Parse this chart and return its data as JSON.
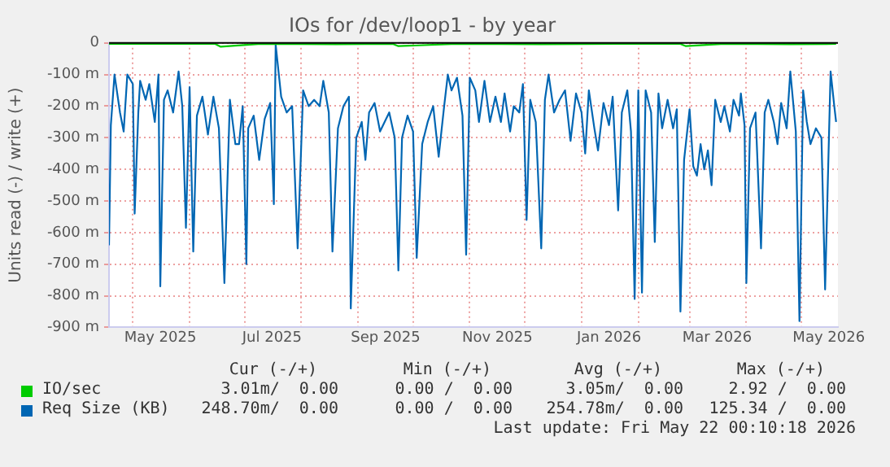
{
  "chart_data": {
    "type": "line",
    "title": "IOs for /dev/loop1 - by year",
    "ylabel": "Units read (-) / write (+)",
    "xlim": [
      "2025-04-18",
      "2026-05-21"
    ],
    "xticks": [
      {
        "value": "2025-05-01",
        "label": null
      },
      {
        "value": "2025-05-16",
        "label": "May 2025"
      },
      {
        "value": "2025-06-01",
        "label": null
      },
      {
        "value": "2025-07-01",
        "label": null
      },
      {
        "value": "2025-07-16",
        "label": "Jul 2025"
      },
      {
        "value": "2025-08-01",
        "label": null
      },
      {
        "value": "2025-09-01",
        "label": null
      },
      {
        "value": "2025-09-16",
        "label": "Sep 2025"
      },
      {
        "value": "2025-10-01",
        "label": null
      },
      {
        "value": "2025-11-01",
        "label": null
      },
      {
        "value": "2025-11-16",
        "label": "Nov 2025"
      },
      {
        "value": "2025-12-01",
        "label": null
      },
      {
        "value": "2026-01-01",
        "label": null
      },
      {
        "value": "2026-01-16",
        "label": "Jan 2026"
      },
      {
        "value": "2026-02-01",
        "label": null
      },
      {
        "value": "2026-03-01",
        "label": null
      },
      {
        "value": "2026-03-16",
        "label": "Mar 2026"
      },
      {
        "value": "2026-04-01",
        "label": null
      },
      {
        "value": "2026-05-01",
        "label": null
      },
      {
        "value": "2026-05-16",
        "label": "May 2026"
      }
    ],
    "ylim": [
      -900,
      0
    ],
    "yticks": [
      0,
      {
        "value": -100,
        "label": "-100 m"
      },
      {
        "value": -200,
        "label": "-200 m"
      },
      {
        "value": -300,
        "label": "-300 m"
      },
      {
        "value": -400,
        "label": "-400 m"
      },
      {
        "value": -500,
        "label": "-500 m"
      },
      {
        "value": -600,
        "label": "-600 m"
      },
      {
        "value": -700,
        "label": "-700 m"
      },
      {
        "value": -800,
        "label": "-800 m"
      },
      {
        "value": -900,
        "label": "-900 m"
      }
    ],
    "grid": true,
    "legend": "bottom",
    "marker": "none",
    "line_style": "solid",
    "series": [
      {
        "name": "IO/sec",
        "color": "#00cc00",
        "x": [
          "2025-04-18",
          "2025-05-20",
          "2025-06-15",
          "2025-06-18",
          "2025-07-10",
          "2025-08-20",
          "2025-09-20",
          "2025-09-23",
          "2025-10-25",
          "2025-12-10",
          "2026-01-20",
          "2026-02-24",
          "2026-02-27",
          "2026-03-20",
          "2026-04-25",
          "2026-05-20"
        ],
        "values": [
          -3,
          -3,
          -3,
          -12,
          -3,
          -4,
          -3,
          -10,
          -3,
          -4,
          -3,
          -3,
          -10,
          -3,
          -4,
          -3
        ]
      },
      {
        "name": "Req Size (KB)",
        "color": "#0066b3",
        "x": [
          "2025-04-18",
          "2025-04-19",
          "2025-04-21",
          "2025-04-24",
          "2025-04-26",
          "2025-04-28",
          "2025-05-01",
          "2025-05-02",
          "2025-05-04",
          "2025-05-05",
          "2025-05-08",
          "2025-05-10",
          "2025-05-13",
          "2025-05-15",
          "2025-05-16",
          "2025-05-18",
          "2025-05-20",
          "2025-05-23",
          "2025-05-26",
          "2025-05-28",
          "2025-05-30",
          "2025-06-01",
          "2025-06-03",
          "2025-06-05",
          "2025-06-08",
          "2025-06-11",
          "2025-06-14",
          "2025-06-17",
          "2025-06-20",
          "2025-06-23",
          "2025-06-26",
          "2025-06-28",
          "2025-06-30",
          "2025-07-02",
          "2025-07-03",
          "2025-07-06",
          "2025-07-09",
          "2025-07-12",
          "2025-07-15",
          "2025-07-17",
          "2025-07-18",
          "2025-07-21",
          "2025-07-24",
          "2025-07-27",
          "2025-07-30",
          "2025-08-02",
          "2025-08-05",
          "2025-08-08",
          "2025-08-11",
          "2025-08-13",
          "2025-08-16",
          "2025-08-18",
          "2025-08-21",
          "2025-08-24",
          "2025-08-27",
          "2025-08-28",
          "2025-08-31",
          "2025-09-03",
          "2025-09-05",
          "2025-09-07",
          "2025-09-10",
          "2025-09-13",
          "2025-09-18",
          "2025-09-21",
          "2025-09-23",
          "2025-09-25",
          "2025-09-28",
          "2025-10-01",
          "2025-10-03",
          "2025-10-06",
          "2025-10-09",
          "2025-10-12",
          "2025-10-15",
          "2025-10-18",
          "2025-10-20",
          "2025-10-22",
          "2025-10-25",
          "2025-10-28",
          "2025-10-30",
          "2025-11-01",
          "2025-11-04",
          "2025-11-06",
          "2025-11-09",
          "2025-11-12",
          "2025-11-15",
          "2025-11-18",
          "2025-11-20",
          "2025-11-23",
          "2025-11-25",
          "2025-11-28",
          "2025-11-30",
          "2025-12-02",
          "2025-12-04",
          "2025-12-07",
          "2025-12-10",
          "2025-12-12",
          "2025-12-14",
          "2025-12-17",
          "2025-12-20",
          "2025-12-23",
          "2025-12-26",
          "2025-12-29",
          "2026-01-01",
          "2026-01-03",
          "2026-01-05",
          "2026-01-08",
          "2026-01-10",
          "2026-01-13",
          "2026-01-16",
          "2026-01-18",
          "2026-01-21",
          "2026-01-23",
          "2026-01-26",
          "2026-01-28",
          "2026-01-30",
          "2026-02-01",
          "2026-02-03",
          "2026-02-05",
          "2026-02-08",
          "2026-02-10",
          "2026-02-12",
          "2026-02-14",
          "2026-02-17",
          "2026-02-20",
          "2026-02-22",
          "2026-02-24",
          "2026-02-26",
          "2026-03-01",
          "2026-03-03",
          "2026-03-05",
          "2026-03-07",
          "2026-03-09",
          "2026-03-11",
          "2026-03-13",
          "2026-03-15",
          "2026-03-18",
          "2026-03-20",
          "2026-03-23",
          "2026-03-25",
          "2026-03-28",
          "2026-03-29",
          "2026-03-31",
          "2026-04-01",
          "2026-04-03",
          "2026-04-06",
          "2026-04-09",
          "2026-04-11",
          "2026-04-13",
          "2026-04-16",
          "2026-04-18",
          "2026-04-20",
          "2026-04-23",
          "2026-04-25",
          "2026-04-28",
          "2026-04-30",
          "2026-05-02",
          "2026-05-04",
          "2026-05-06",
          "2026-05-09",
          "2026-05-12",
          "2026-05-14",
          "2026-05-17",
          "2026-05-19",
          "2026-05-20"
        ],
        "values": [
          -640,
          -260,
          -100,
          -220,
          -280,
          -100,
          -130,
          -540,
          -220,
          -120,
          -180,
          -130,
          -250,
          -100,
          -770,
          -180,
          -150,
          -220,
          -90,
          -200,
          -585,
          -140,
          -660,
          -230,
          -170,
          -290,
          -170,
          -270,
          -760,
          -180,
          -320,
          -320,
          -200,
          -700,
          -270,
          -230,
          -370,
          -240,
          -190,
          -510,
          -5,
          -170,
          -220,
          -200,
          -650,
          -150,
          -200,
          -180,
          -200,
          -120,
          -220,
          -660,
          -270,
          -200,
          -170,
          -840,
          -300,
          -250,
          -370,
          -220,
          -190,
          -280,
          -220,
          -300,
          -720,
          -300,
          -230,
          -280,
          -680,
          -320,
          -250,
          -200,
          -360,
          -200,
          -100,
          -150,
          -110,
          -230,
          -670,
          -110,
          -150,
          -250,
          -120,
          -250,
          -170,
          -250,
          -160,
          -280,
          -200,
          -220,
          -130,
          -560,
          -180,
          -250,
          -650,
          -180,
          -100,
          -220,
          -180,
          -150,
          -310,
          -160,
          -220,
          -350,
          -150,
          -270,
          -340,
          -190,
          -260,
          -170,
          -530,
          -220,
          -150,
          -280,
          -810,
          -150,
          -790,
          -150,
          -220,
          -630,
          -160,
          -270,
          -180,
          -270,
          -210,
          -850,
          -370,
          -210,
          -390,
          -420,
          -320,
          -400,
          -340,
          -450,
          -180,
          -250,
          -200,
          -280,
          -180,
          -230,
          -160,
          -260,
          -760,
          -270,
          -220,
          -650,
          -220,
          -180,
          -250,
          -320,
          -190,
          -270,
          -90,
          -280,
          -880,
          -150,
          -250,
          -320,
          -270,
          -300,
          -780,
          -90,
          -200,
          -250
        ]
      }
    ],
    "annotations": [
      "Cur (-/+)",
      "Min (-/+)",
      "Avg (-/+)",
      "Max (-/+)",
      "3.01m/  0.00",
      "0.00 /  0.00",
      "3.05m/  0.00",
      "2.92 /  0.00",
      "248.70m/  0.00",
      "0.00 /  0.00",
      "254.78m/  0.00",
      "125.34 /  0.00",
      "Last update: Fri May 22 00:10:18 2026"
    ]
  }
}
